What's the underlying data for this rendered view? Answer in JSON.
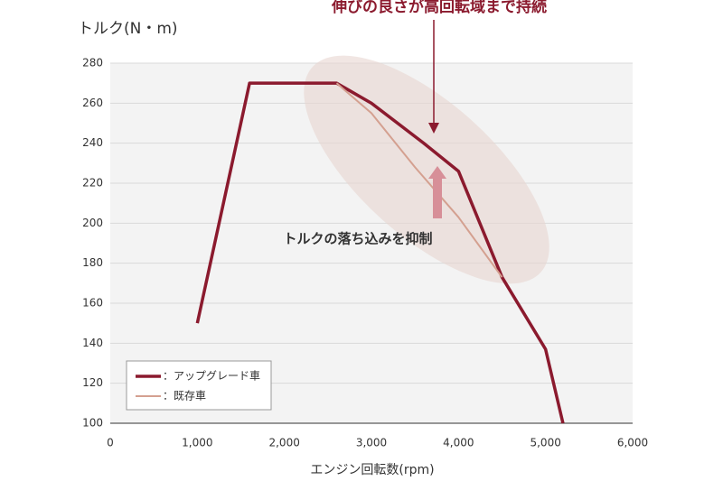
{
  "chart_data": {
    "type": "line",
    "title": "伸びの良さが高回転域まで持続",
    "annotation": "トルクの落ち込みを抑制",
    "y_label": "トルク(N・m)",
    "x_label": "エンジン回転数(rpm)",
    "series": [
      {
        "name": "：アップグレード車",
        "color": "#8b1a2e",
        "x": [
          1000,
          1600,
          2600,
          3000,
          3600,
          4000,
          4500,
          5000,
          5200
        ],
        "values": [
          150,
          270,
          270,
          260,
          240,
          226,
          173,
          137,
          100
        ]
      },
      {
        "name": "：既存車",
        "color": "#d4a090",
        "x": [
          2600,
          3000,
          3500,
          4000,
          4500
        ],
        "values": [
          270,
          255,
          228,
          203,
          173
        ]
      }
    ],
    "xlim": [
      0,
      6000
    ],
    "xticks": [
      0,
      {
        "value": 1000,
        "label": "1,000"
      },
      {
        "value": 2000,
        "label": "2,000"
      },
      {
        "value": 3000,
        "label": "3,000"
      },
      {
        "value": 4000,
        "label": "4,000"
      },
      {
        "value": 5000,
        "label": "5,000"
      },
      {
        "value": 6000,
        "label": "6,000"
      }
    ],
    "ylim": [
      100,
      280
    ],
    "yticks": [
      100,
      120,
      140,
      160,
      180,
      200,
      220,
      240,
      260,
      280
    ],
    "grid": true,
    "legend": "lower left"
  }
}
